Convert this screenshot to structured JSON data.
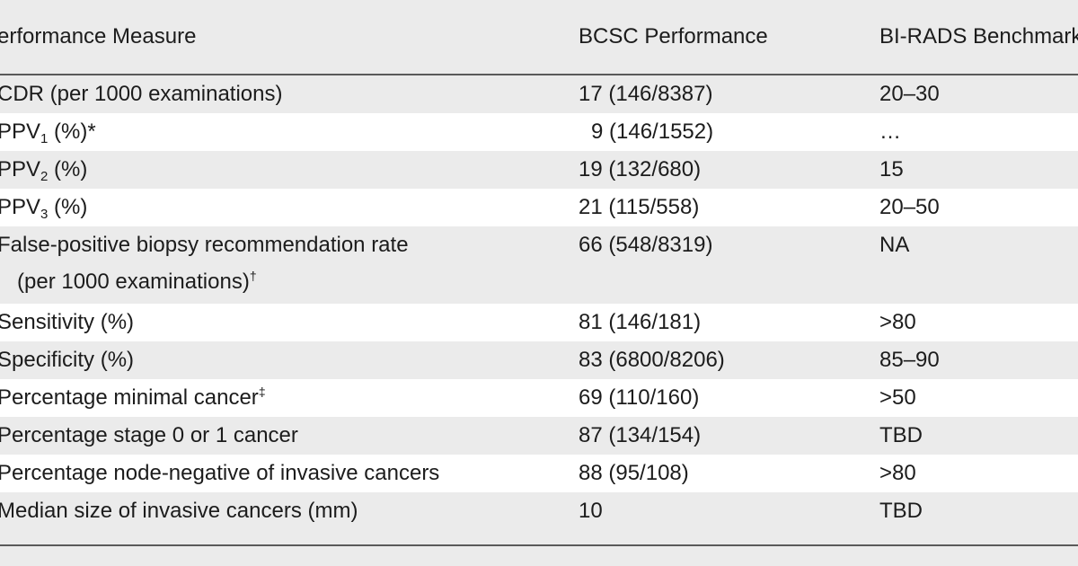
{
  "headers": {
    "measure": "erformance Measure",
    "bcsc": "BCSC Performance",
    "birads": "BI-RADS Benchmark"
  },
  "rows": [
    {
      "measure": "CDR (per 1000 examinations)",
      "bcsc": "17 (146/8387)",
      "birads": "20–30"
    },
    {
      "measure_prefix": "PPV",
      "measure_sub": "1",
      "measure_suffix": " (%)",
      "measure_mark": "*",
      "bcsc": "9 (146/1552)",
      "birads": "…"
    },
    {
      "measure_prefix": "PPV",
      "measure_sub": "2",
      "measure_suffix": " (%)",
      "bcsc": "19 (132/680)",
      "birads": "15"
    },
    {
      "measure_prefix": "PPV",
      "measure_sub": "3",
      "measure_suffix": " (%)",
      "bcsc": "21 (115/558)",
      "birads": "20–50"
    },
    {
      "measure_line1": "False-positive biopsy recommendation rate",
      "measure_line2": "(per 1000 examinations)",
      "measure_mark": "†",
      "bcsc": "66 (548/8319)",
      "birads": "NA"
    },
    {
      "measure": "Sensitivity (%)",
      "bcsc": "81 (146/181)",
      "birads": ">80"
    },
    {
      "measure": "Specificity (%)",
      "bcsc": "83 (6800/8206)",
      "birads": "85–90"
    },
    {
      "measure": "Percentage minimal cancer",
      "measure_mark": "‡",
      "bcsc": "69 (110/160)",
      "birads": ">50"
    },
    {
      "measure": "Percentage stage 0 or 1 cancer",
      "bcsc": "87 (134/154)",
      "birads": "TBD"
    },
    {
      "measure": "Percentage node-negative of invasive cancers",
      "bcsc": "88 (95/108)",
      "birads": ">80"
    },
    {
      "measure": "Median size of invasive cancers (mm)",
      "bcsc": "10",
      "birads": "TBD"
    }
  ]
}
